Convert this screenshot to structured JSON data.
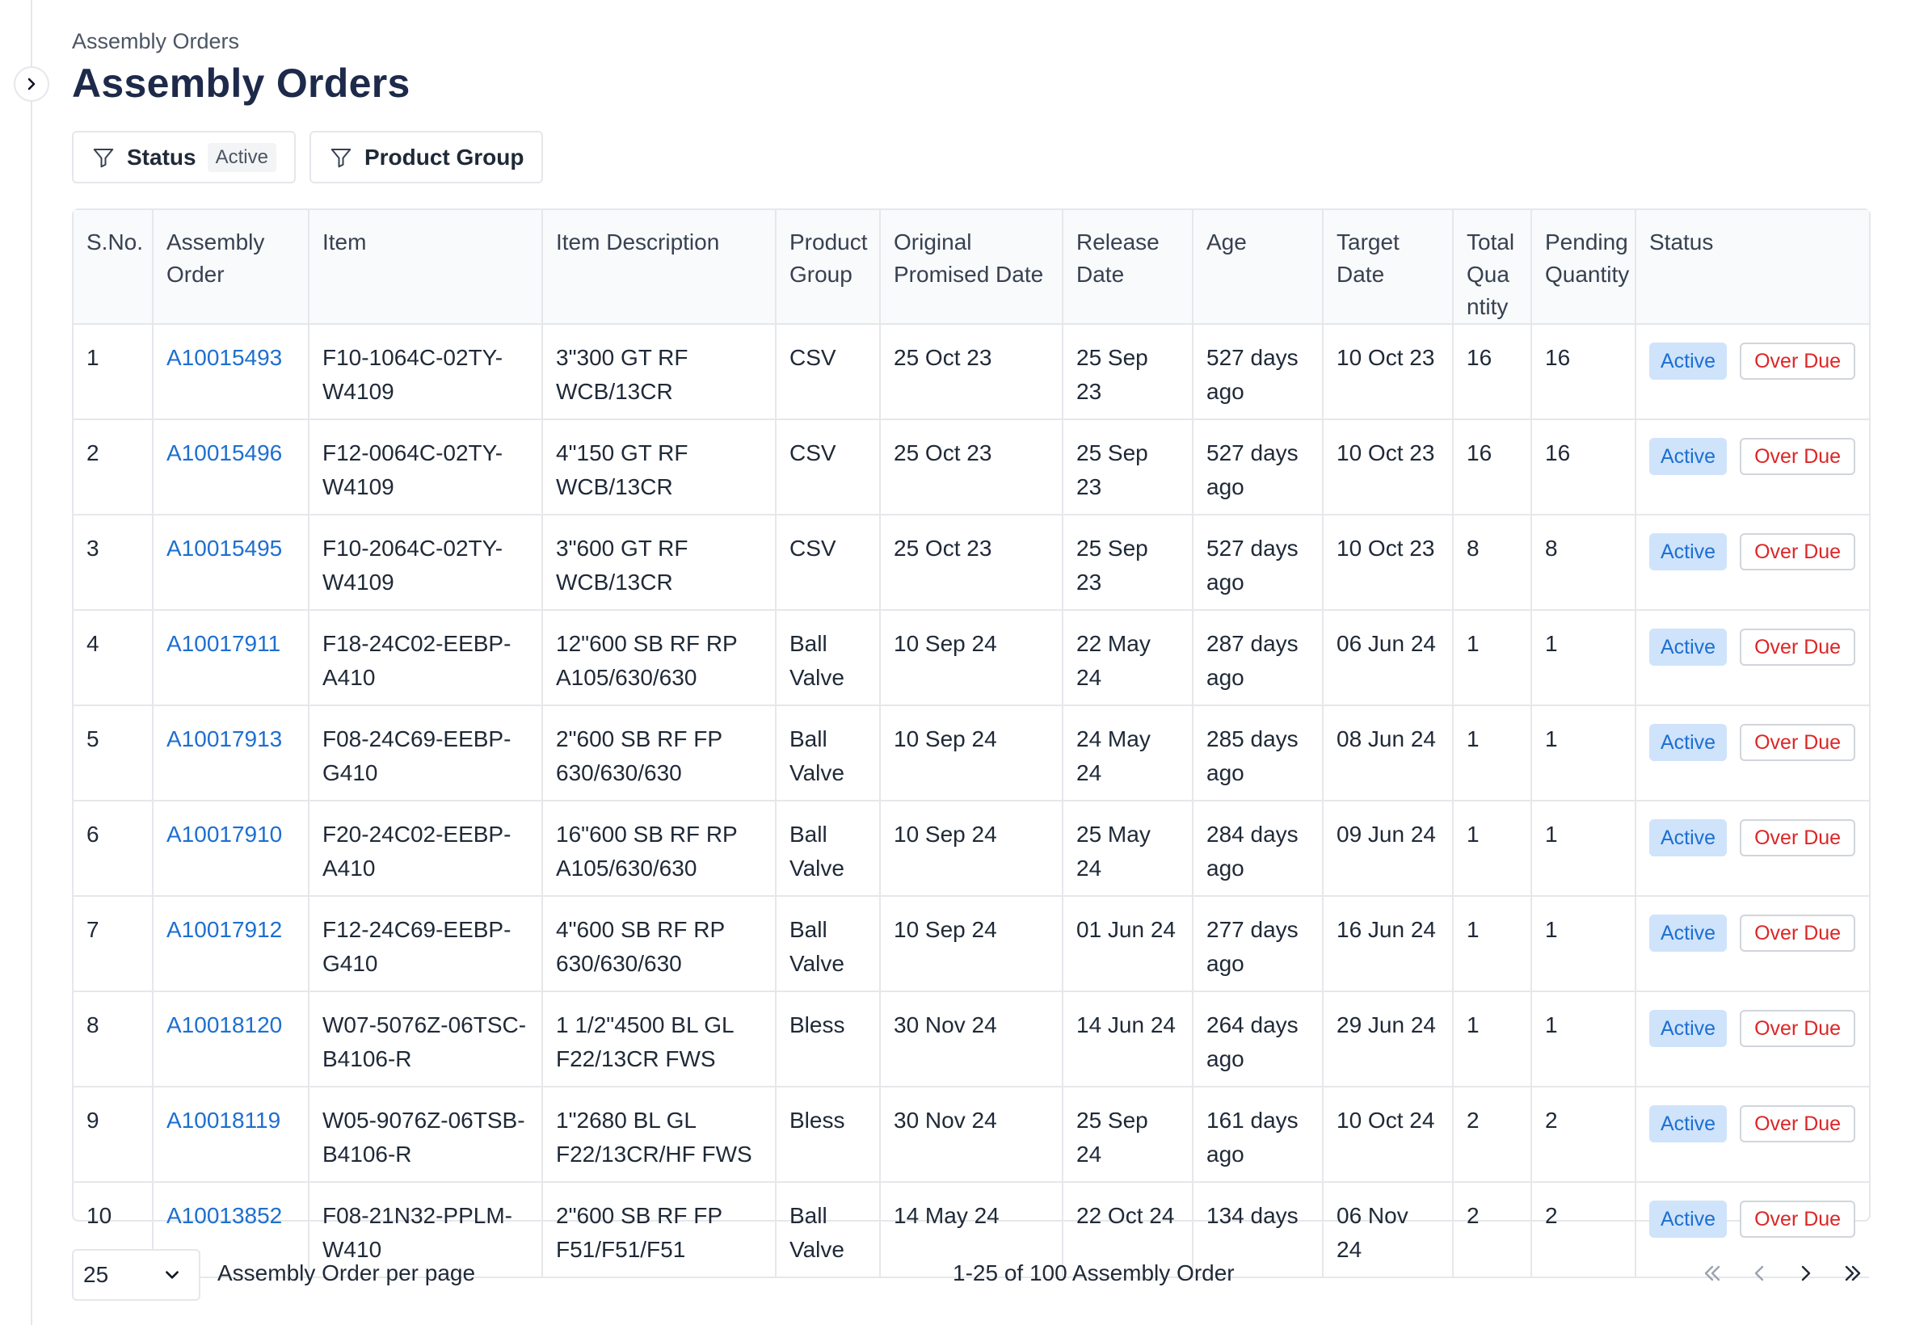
{
  "breadcrumb": "Assembly Orders",
  "title": "Assembly Orders",
  "filters": {
    "status_label": "Status",
    "status_value": "Active",
    "product_group_label": "Product Group"
  },
  "table": {
    "columns": [
      "S.No.",
      "Assembly Order",
      "Item",
      "Item Description",
      "Product Group",
      "Original Promised Date",
      "Release Date",
      "Age",
      "Target Date",
      "Total Quantity",
      "Pending Quantity",
      "Status"
    ],
    "rows": [
      {
        "sno": "1",
        "order": "A10015493",
        "item": "F10-1064C-02TY-W4109",
        "description": "3\"300 GT RF WCB/13CR",
        "group": "CSV",
        "promised": "25 Oct 23",
        "release": "25 Sep 23",
        "age": "527 days ago",
        "target": "10 Oct 23",
        "total": "16",
        "pending": "16",
        "status": "Active",
        "flag": "Over Due"
      },
      {
        "sno": "2",
        "order": "A10015496",
        "item": "F12-0064C-02TY-W4109",
        "description": "4\"150 GT RF WCB/13CR",
        "group": "CSV",
        "promised": "25 Oct 23",
        "release": "25 Sep 23",
        "age": "527 days ago",
        "target": "10 Oct 23",
        "total": "16",
        "pending": "16",
        "status": "Active",
        "flag": "Over Due"
      },
      {
        "sno": "3",
        "order": "A10015495",
        "item": "F10-2064C-02TY-W4109",
        "description": "3\"600 GT RF WCB/13CR",
        "group": "CSV",
        "promised": "25 Oct 23",
        "release": "25 Sep 23",
        "age": "527 days ago",
        "target": "10 Oct 23",
        "total": "8",
        "pending": "8",
        "status": "Active",
        "flag": "Over Due"
      },
      {
        "sno": "4",
        "order": "A10017911",
        "item": "F18-24C02-EEBP-A410",
        "description": "12\"600 SB RF RP A105/630/630",
        "group": "Ball Valve",
        "promised": "10 Sep 24",
        "release": "22 May 24",
        "age": "287 days ago",
        "target": "06 Jun 24",
        "total": "1",
        "pending": "1",
        "status": "Active",
        "flag": "Over Due"
      },
      {
        "sno": "5",
        "order": "A10017913",
        "item": "F08-24C69-EEBP-G410",
        "description": "2\"600 SB RF FP 630/630/630",
        "group": "Ball Valve",
        "promised": "10 Sep 24",
        "release": "24 May 24",
        "age": "285 days ago",
        "target": "08 Jun 24",
        "total": "1",
        "pending": "1",
        "status": "Active",
        "flag": "Over Due"
      },
      {
        "sno": "6",
        "order": "A10017910",
        "item": "F20-24C02-EEBP-A410",
        "description": "16\"600 SB RF RP A105/630/630",
        "group": "Ball Valve",
        "promised": "10 Sep 24",
        "release": "25 May 24",
        "age": "284 days ago",
        "target": "09 Jun 24",
        "total": "1",
        "pending": "1",
        "status": "Active",
        "flag": "Over Due"
      },
      {
        "sno": "7",
        "order": "A10017912",
        "item": "F12-24C69-EEBP-G410",
        "description": "4\"600 SB RF RP 630/630/630",
        "group": "Ball Valve",
        "promised": "10 Sep 24",
        "release": "01 Jun 24",
        "age": "277 days ago",
        "target": "16 Jun 24",
        "total": "1",
        "pending": "1",
        "status": "Active",
        "flag": "Over Due"
      },
      {
        "sno": "8",
        "order": "A10018120",
        "item": "W07-5076Z-06TSC-B4106-R",
        "description": "1 1/2\"4500 BL GL F22/13CR FWS",
        "group": "Bless",
        "promised": "30 Nov 24",
        "release": "14 Jun 24",
        "age": "264 days ago",
        "target": "29 Jun 24",
        "total": "1",
        "pending": "1",
        "status": "Active",
        "flag": "Over Due"
      },
      {
        "sno": "9",
        "order": "A10018119",
        "item": "W05-9076Z-06TSB-B4106-R",
        "description": "1\"2680 BL GL F22/13CR/HF FWS",
        "group": "Bless",
        "promised": "30 Nov 24",
        "release": "25 Sep 24",
        "age": "161 days ago",
        "target": "10 Oct 24",
        "total": "2",
        "pending": "2",
        "status": "Active",
        "flag": "Over Due"
      },
      {
        "sno": "10",
        "order": "A10013852",
        "item": "F08-21N32-PPLM-W410",
        "description": "2\"600 SB RF FP F51/F51/F51",
        "group": "Ball Valve",
        "promised": "14 May 24",
        "release": "22 Oct 24",
        "age": "134 days",
        "target": "06 Nov 24",
        "total": "2",
        "pending": "2",
        "status": "Active",
        "flag": "Over Due"
      }
    ]
  },
  "footer": {
    "per_page_value": "25",
    "per_page_label": "Assembly Order per page",
    "range": "1-25 of 100 Assembly Order"
  },
  "colors": {
    "link": "#1d6fd0",
    "active_badge_bg": "#cfe3fb",
    "overdue_text": "#dc2626",
    "title": "#1e2a4a"
  },
  "icons": {
    "sidebar_toggle": "chevron-right-icon",
    "filter": "funnel-icon",
    "select": "chevron-down-icon",
    "pager": [
      "first-page-icon",
      "prev-page-icon",
      "next-page-icon",
      "last-page-icon"
    ]
  }
}
